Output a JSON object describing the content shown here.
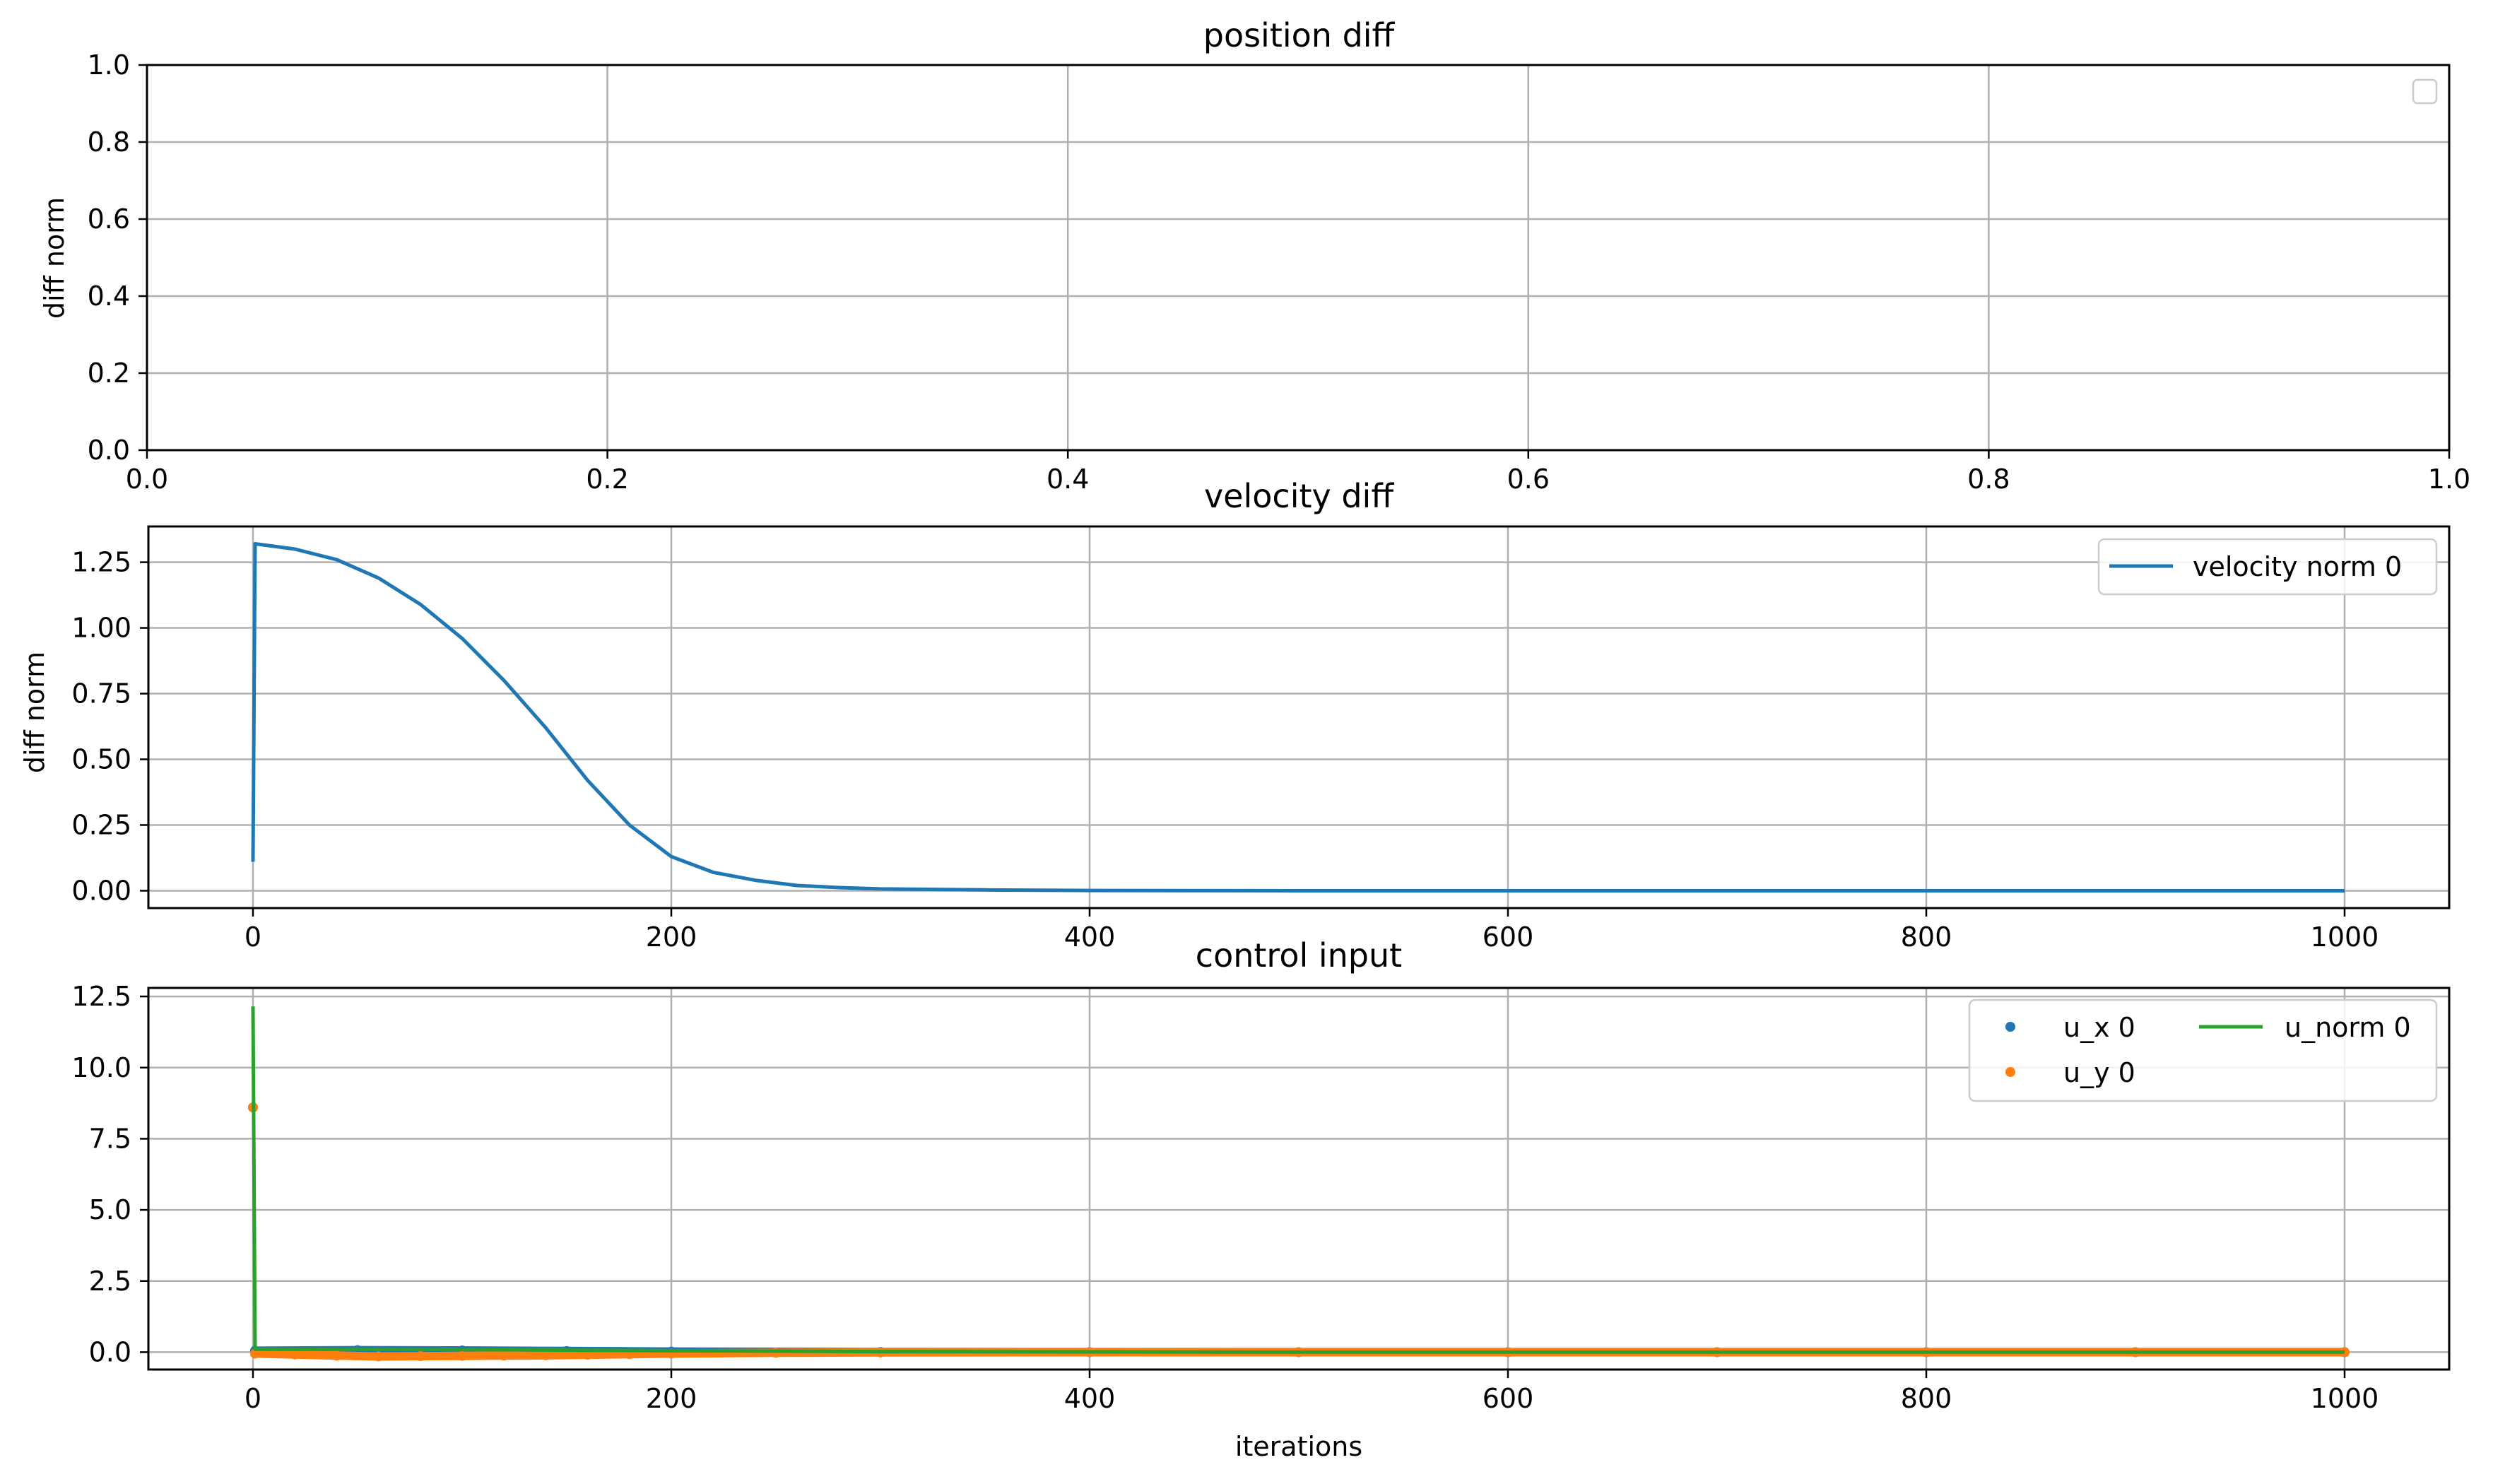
{
  "colors": {
    "c0": "#1f77b4",
    "c1": "#ff7f0e",
    "c2": "#2ca02c",
    "grid": "#b0b0b0",
    "legend_border": "#cccccc"
  },
  "chart_data": [
    {
      "type": "line",
      "title": "position diff",
      "xlabel": "",
      "ylabel": "diff norm",
      "xlim": [
        0,
        1
      ],
      "ylim": [
        0,
        1
      ],
      "xticks": [
        "0.0",
        "0.2",
        "0.4",
        "0.6",
        "0.8",
        "1.0"
      ],
      "yticks": [
        "0.0",
        "0.2",
        "0.4",
        "0.6",
        "0.8",
        "1.0"
      ],
      "grid": true,
      "legend": "top-right (empty)",
      "series": []
    },
    {
      "type": "line",
      "title": "velocity diff",
      "xlabel": "",
      "ylabel": "diff norm",
      "xlim": [
        -50,
        1050
      ],
      "ylim": [
        -0.066,
        1.386
      ],
      "xticks": [
        "0",
        "200",
        "400",
        "600",
        "800",
        "1000"
      ],
      "yticks": [
        "0.00",
        "0.25",
        "0.50",
        "0.75",
        "1.00",
        "1.25"
      ],
      "grid": true,
      "legend": "top-right",
      "series": [
        {
          "name": "velocity norm 0",
          "style": "line",
          "x": [
            0,
            1,
            20,
            40,
            60,
            80,
            100,
            120,
            140,
            160,
            180,
            200,
            220,
            240,
            260,
            280,
            300,
            350,
            400,
            500,
            600,
            700,
            800,
            900,
            1000
          ],
          "y": [
            0.11,
            1.32,
            1.3,
            1.26,
            1.19,
            1.09,
            0.96,
            0.8,
            0.62,
            0.42,
            0.25,
            0.13,
            0.07,
            0.04,
            0.02,
            0.012,
            0.007,
            0.003,
            0.001,
            0.0,
            0.0,
            0.0,
            0.0,
            0.0,
            0.0
          ]
        }
      ]
    },
    {
      "type": "line",
      "title": "control input",
      "xlabel": "iterations",
      "ylabel": "",
      "xlim": [
        -50,
        1050
      ],
      "ylim": [
        -0.61,
        12.8
      ],
      "xticks": [
        "0",
        "200",
        "400",
        "600",
        "800",
        "1000"
      ],
      "yticks": [
        "0.0",
        "2.5",
        "5.0",
        "7.5",
        "10.0",
        "12.5"
      ],
      "grid": true,
      "legend": "top-right",
      "series": [
        {
          "name": "u_x 0",
          "style": "scatter",
          "x": [
            0,
            1,
            50,
            100,
            150,
            200,
            300,
            400,
            500,
            600,
            700,
            800,
            900,
            1000
          ],
          "y": [
            8.6,
            0.05,
            0.07,
            0.06,
            0.04,
            0.02,
            0.005,
            0.0,
            0.0,
            0.0,
            0.0,
            0.0,
            0.0,
            0.0
          ]
        },
        {
          "name": "u_y 0",
          "style": "scatter",
          "x": [
            0,
            1,
            20,
            40,
            60,
            80,
            100,
            120,
            140,
            160,
            180,
            200,
            250,
            300,
            400,
            500,
            600,
            700,
            800,
            900,
            1000
          ],
          "y": [
            8.6,
            -0.05,
            -0.08,
            -0.12,
            -0.15,
            -0.14,
            -0.13,
            -0.12,
            -0.11,
            -0.09,
            -0.07,
            -0.05,
            -0.02,
            -0.01,
            0.0,
            0.0,
            0.0,
            0.0,
            0.0,
            0.0,
            0.0
          ]
        },
        {
          "name": "u_norm 0",
          "style": "line",
          "x": [
            0,
            1,
            50,
            100,
            150,
            200,
            300,
            400,
            500,
            600,
            700,
            800,
            900,
            1000
          ],
          "y": [
            12.15,
            0.1,
            0.1,
            0.09,
            0.07,
            0.05,
            0.02,
            0.01,
            0.0,
            0.0,
            0.0,
            0.0,
            0.0,
            0.0
          ]
        }
      ]
    }
  ]
}
